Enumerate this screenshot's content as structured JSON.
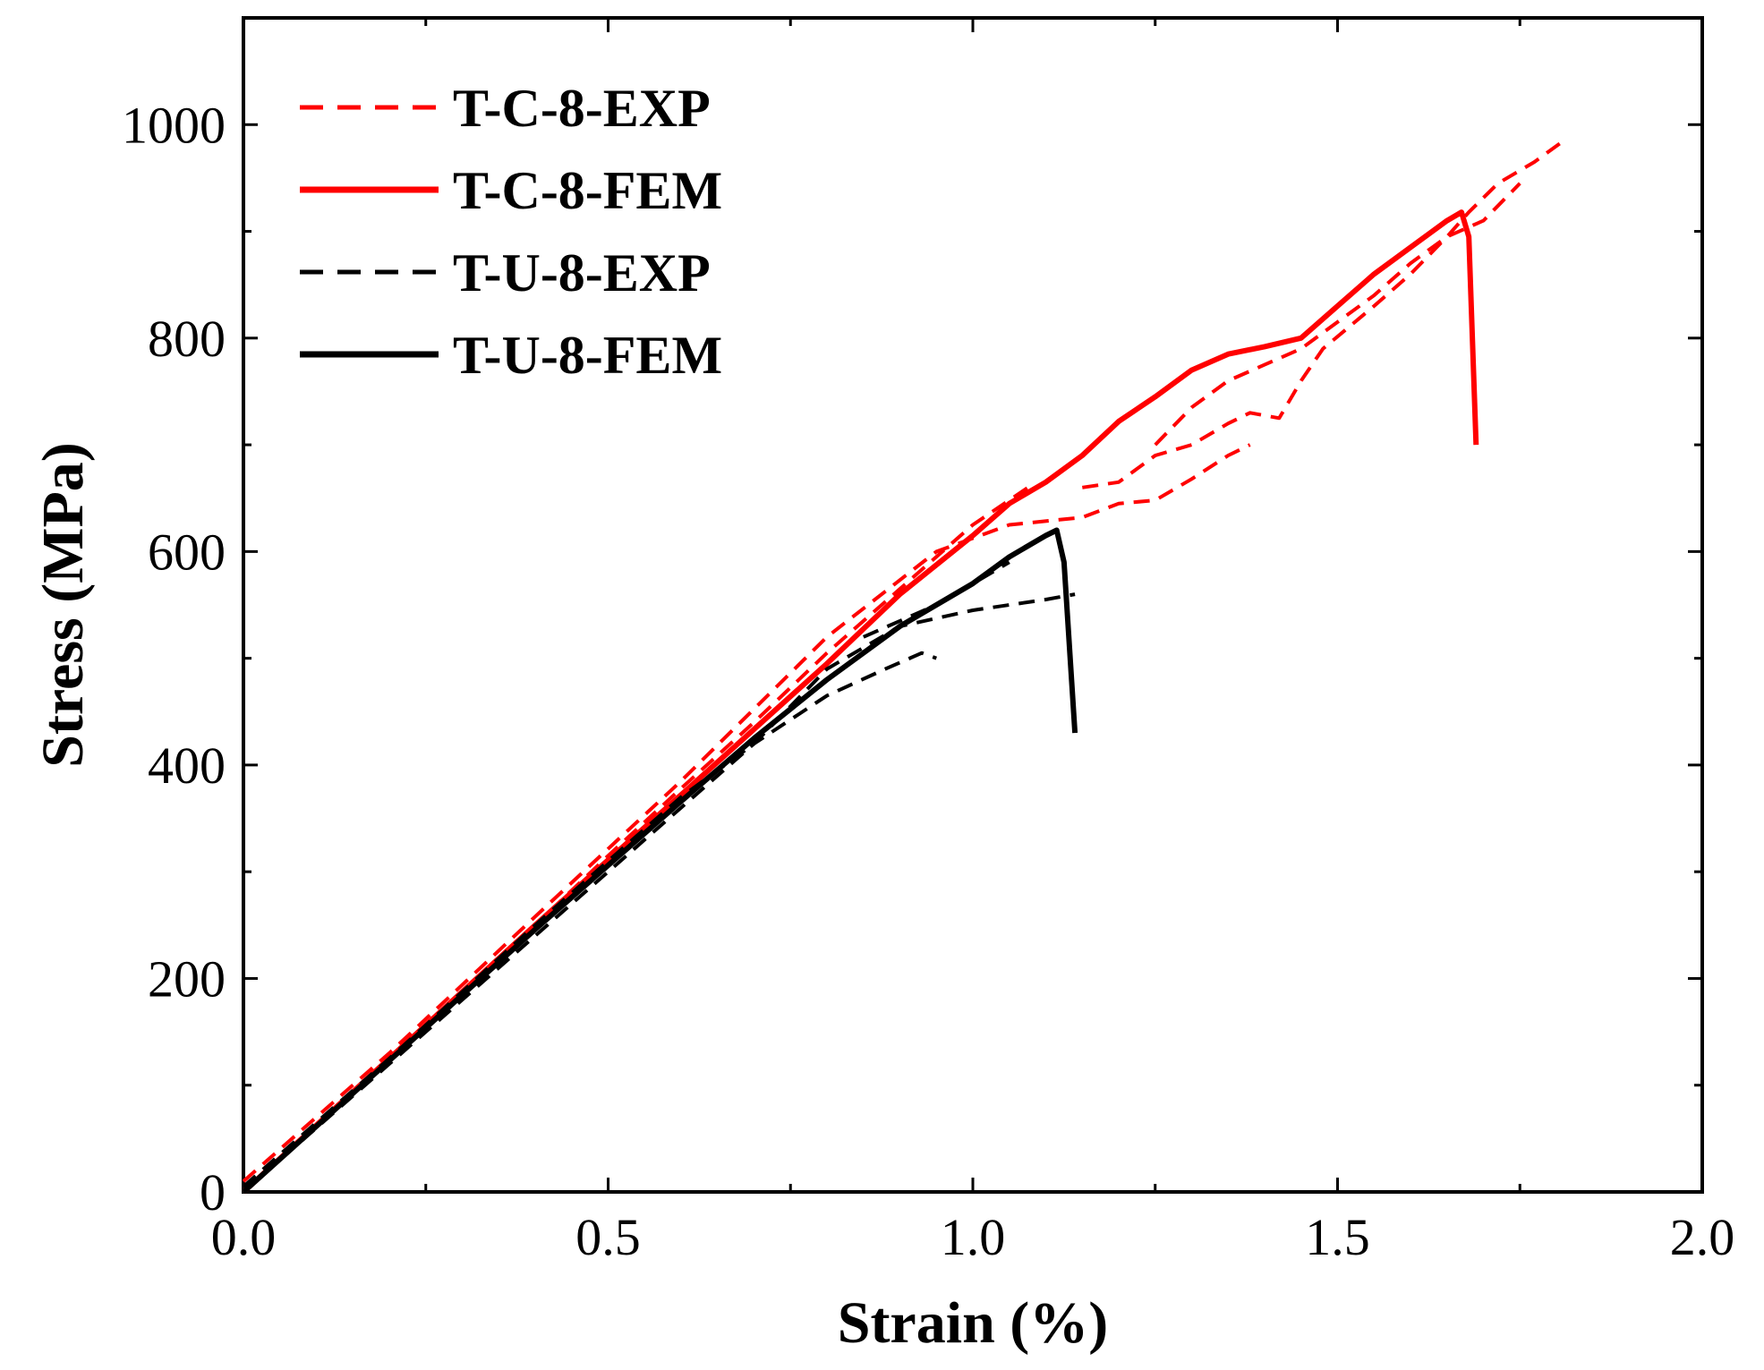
{
  "chart_data": {
    "type": "line",
    "xlabel": "Strain (%)",
    "ylabel": "Stress (MPa)",
    "xlim": [
      0,
      2.0
    ],
    "ylim": [
      0,
      1100
    ],
    "x_ticks": [
      0.0,
      0.5,
      1.0,
      1.5,
      2.0
    ],
    "x_tick_labels": [
      "0.0",
      "0.5",
      "1.0",
      "1.5",
      "2.0"
    ],
    "x_minor_ticks": [
      0.25,
      0.75,
      1.25,
      1.75
    ],
    "y_ticks": [
      0,
      200,
      400,
      600,
      800,
      1000
    ],
    "y_tick_labels": [
      "0",
      "200",
      "400",
      "600",
      "800",
      "1000"
    ],
    "y_minor_ticks": [
      100,
      300,
      500,
      700,
      900
    ],
    "grid": false,
    "legend_position": "top-left",
    "series": [
      {
        "name": "T-C-8-EXP",
        "color": "#ff0000",
        "style": "dashed",
        "segments": [
          [
            [
              0.0,
              0
            ],
            [
              0.1,
              62
            ],
            [
              0.2,
              122
            ],
            [
              0.3,
              185
            ],
            [
              0.4,
              250
            ],
            [
              0.5,
              315
            ],
            [
              0.6,
              378
            ],
            [
              0.7,
              440
            ],
            [
              0.8,
              505
            ],
            [
              0.9,
              565
            ],
            [
              1.0,
              625
            ],
            [
              1.08,
              662
            ]
          ],
          [
            [
              0.0,
              10
            ],
            [
              0.2,
              130
            ],
            [
              0.4,
              258
            ],
            [
              0.6,
              385
            ],
            [
              0.8,
              520
            ],
            [
              0.95,
              600
            ],
            [
              1.05,
              625
            ],
            [
              1.15,
              632
            ],
            [
              1.2,
              645
            ],
            [
              1.25,
              648
            ],
            [
              1.3,
              668
            ],
            [
              1.35,
              690
            ],
            [
              1.38,
              700
            ]
          ],
          [
            [
              1.15,
              660
            ],
            [
              1.2,
              665
            ],
            [
              1.25,
              690
            ],
            [
              1.3,
              700
            ],
            [
              1.35,
              720
            ],
            [
              1.38,
              730
            ],
            [
              1.42,
              725
            ],
            [
              1.45,
              760
            ],
            [
              1.48,
              790
            ],
            [
              1.55,
              830
            ],
            [
              1.6,
              860
            ],
            [
              1.65,
              895
            ],
            [
              1.68,
              918
            ],
            [
              1.72,
              945
            ],
            [
              1.77,
              965
            ],
            [
              1.81,
              985
            ]
          ],
          [
            [
              1.25,
              700
            ],
            [
              1.3,
              735
            ],
            [
              1.35,
              760
            ],
            [
              1.4,
              775
            ],
            [
              1.45,
              790
            ],
            [
              1.5,
              815
            ],
            [
              1.55,
              840
            ],
            [
              1.6,
              870
            ],
            [
              1.65,
              895
            ],
            [
              1.7,
              910
            ],
            [
              1.75,
              945
            ]
          ]
        ]
      },
      {
        "name": "T-C-8-FEM",
        "color": "#ff0000",
        "style": "solid",
        "segments": [
          [
            [
              0.0,
              0
            ],
            [
              0.2,
              125
            ],
            [
              0.4,
              250
            ],
            [
              0.6,
              372
            ],
            [
              0.8,
              495
            ],
            [
              0.9,
              560
            ],
            [
              1.0,
              615
            ],
            [
              1.05,
              645
            ],
            [
              1.1,
              665
            ],
            [
              1.15,
              690
            ],
            [
              1.2,
              722
            ],
            [
              1.25,
              745
            ],
            [
              1.3,
              770
            ],
            [
              1.35,
              785
            ],
            [
              1.4,
              792
            ],
            [
              1.45,
              800
            ],
            [
              1.5,
              830
            ],
            [
              1.55,
              860
            ],
            [
              1.6,
              885
            ],
            [
              1.65,
              910
            ],
            [
              1.67,
              918
            ],
            [
              1.68,
              895
            ],
            [
              1.69,
              700
            ]
          ]
        ]
      },
      {
        "name": "T-U-8-EXP",
        "color": "#000000",
        "style": "dashed",
        "segments": [
          [
            [
              0.0,
              0
            ],
            [
              0.1,
              60
            ],
            [
              0.2,
              120
            ],
            [
              0.3,
              180
            ],
            [
              0.4,
              240
            ],
            [
              0.5,
              300
            ],
            [
              0.6,
              360
            ],
            [
              0.7,
              420
            ],
            [
              0.8,
              465
            ],
            [
              0.88,
              490
            ],
            [
              0.93,
              505
            ],
            [
              0.95,
              500
            ]
          ],
          [
            [
              0.0,
              5
            ],
            [
              0.2,
              125
            ],
            [
              0.4,
              250
            ],
            [
              0.6,
              370
            ],
            [
              0.7,
              420
            ],
            [
              0.8,
              490
            ],
            [
              0.9,
              530
            ],
            [
              1.0,
              545
            ],
            [
              1.1,
              555
            ],
            [
              1.14,
              560
            ]
          ],
          [
            [
              0.85,
              520
            ],
            [
              0.95,
              550
            ],
            [
              1.05,
              590
            ]
          ]
        ]
      },
      {
        "name": "T-U-8-FEM",
        "color": "#000000",
        "style": "solid",
        "segments": [
          [
            [
              0.0,
              0
            ],
            [
              0.2,
              123
            ],
            [
              0.4,
              246
            ],
            [
              0.6,
              366
            ],
            [
              0.7,
              425
            ],
            [
              0.8,
              480
            ],
            [
              0.9,
              530
            ],
            [
              1.0,
              570
            ],
            [
              1.05,
              595
            ],
            [
              1.1,
              615
            ],
            [
              1.115,
              620
            ],
            [
              1.125,
              590
            ],
            [
              1.14,
              430
            ]
          ]
        ]
      }
    ]
  }
}
